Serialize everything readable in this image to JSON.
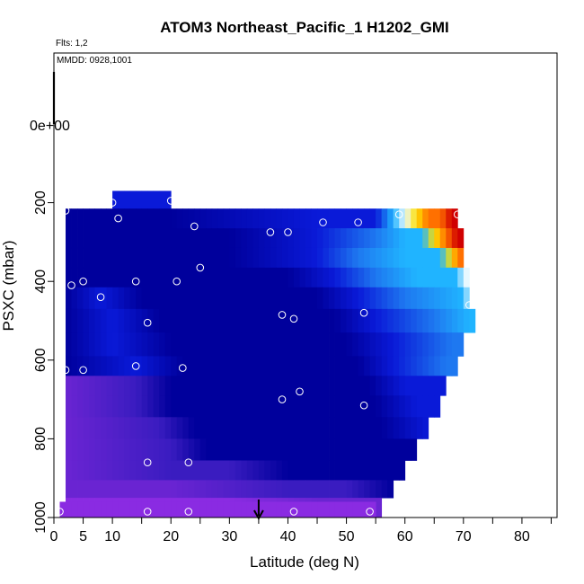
{
  "chart_data": {
    "type": "heatmap",
    "title": "ATOM3 Northeast_Pacific_1 H1202_GMI",
    "notes": [
      "Flts: 1,2",
      "MMDD: 0928,1001"
    ],
    "xlabel": "Latitude (deg N)",
    "ylabel": "PSXC (mbar)",
    "xlim": [
      0,
      86
    ],
    "ylim": [
      1000,
      0
    ],
    "x_ticks": [
      0,
      5,
      10,
      20,
      30,
      40,
      50,
      60,
      70,
      80
    ],
    "x_minor_ticks": [
      15,
      25,
      35,
      45,
      55,
      65,
      75,
      85
    ],
    "y_ticks": [
      200,
      400,
      600,
      800,
      1000
    ],
    "y_extra_label": "0e+00",
    "marker_x": 35,
    "grid": false,
    "colors": {
      "very_low": "#8a2be2",
      "low": "#6a24d2",
      "mid_low": "#3a1cc0",
      "background": "#00009c",
      "mid": "#0a1ad8",
      "mid_high": "#1e78f0",
      "high": "#20b4ff",
      "higher": "#e8f8ff",
      "peak1": "#ffe000",
      "peak2": "#ff7000",
      "peak3": "#d00000"
    },
    "rows": [
      {
        "p": [
          170,
          215
        ],
        "lon": [
          10,
          20
        ],
        "profile": [
          [
            10,
            "mid"
          ],
          [
            20,
            "mid"
          ]
        ]
      },
      {
        "p": [
          215,
          265
        ],
        "lon": [
          2,
          69
        ],
        "profile": [
          [
            2,
            "background"
          ],
          [
            20,
            "background"
          ],
          [
            45,
            "mid"
          ],
          [
            55,
            "mid"
          ],
          [
            58,
            "high"
          ],
          [
            60,
            "higher"
          ],
          [
            62,
            "peak1"
          ],
          [
            64,
            "peak2"
          ],
          [
            66,
            "peak2"
          ],
          [
            68,
            "peak3"
          ],
          [
            69,
            "peak3"
          ]
        ]
      },
      {
        "p": [
          265,
          315
        ],
        "lon": [
          2,
          70
        ],
        "profile": [
          [
            2,
            "background"
          ],
          [
            30,
            "background"
          ],
          [
            45,
            "mid"
          ],
          [
            55,
            "mid_high"
          ],
          [
            60,
            "high"
          ],
          [
            63,
            "high"
          ],
          [
            65,
            "peak1"
          ],
          [
            67,
            "peak2"
          ],
          [
            69,
            "peak3"
          ],
          [
            70,
            "peak3"
          ]
        ]
      },
      {
        "p": [
          315,
          365
        ],
        "lon": [
          2,
          70
        ],
        "profile": [
          [
            2,
            "background"
          ],
          [
            30,
            "background"
          ],
          [
            45,
            "mid"
          ],
          [
            52,
            "mid_high"
          ],
          [
            60,
            "high"
          ],
          [
            66,
            "high"
          ],
          [
            68,
            "peak1"
          ],
          [
            69,
            "peak2"
          ],
          [
            70,
            "peak2"
          ]
        ]
      },
      {
        "p": [
          365,
          415
        ],
        "lon": [
          2,
          71
        ],
        "profile": [
          [
            2,
            "background"
          ],
          [
            40,
            "background"
          ],
          [
            48,
            "mid"
          ],
          [
            55,
            "mid_high"
          ],
          [
            62,
            "high"
          ],
          [
            69,
            "high"
          ],
          [
            70,
            "higher"
          ],
          [
            71,
            "higher"
          ]
        ]
      },
      {
        "p": [
          415,
          470
        ],
        "lon": [
          2,
          71
        ],
        "profile": [
          [
            2,
            "background"
          ],
          [
            8,
            "mid"
          ],
          [
            15,
            "background"
          ],
          [
            45,
            "background"
          ],
          [
            52,
            "mid"
          ],
          [
            60,
            "mid_high"
          ],
          [
            70,
            "high"
          ],
          [
            71,
            "higher"
          ]
        ]
      },
      {
        "p": [
          470,
          530
        ],
        "lon": [
          2,
          72
        ],
        "profile": [
          [
            2,
            "background"
          ],
          [
            10,
            "mid"
          ],
          [
            18,
            "background"
          ],
          [
            48,
            "background"
          ],
          [
            55,
            "mid"
          ],
          [
            65,
            "mid_high"
          ],
          [
            71,
            "high"
          ],
          [
            72,
            "high"
          ]
        ]
      },
      {
        "p": [
          530,
          590
        ],
        "lon": [
          2,
          70
        ],
        "profile": [
          [
            2,
            "background"
          ],
          [
            10,
            "mid"
          ],
          [
            20,
            "background"
          ],
          [
            50,
            "background"
          ],
          [
            58,
            "mid"
          ],
          [
            68,
            "mid_high"
          ],
          [
            70,
            "mid_high"
          ]
        ]
      },
      {
        "p": [
          590,
          640
        ],
        "lon": [
          2,
          69
        ],
        "profile": [
          [
            2,
            "background"
          ],
          [
            14,
            "mid"
          ],
          [
            22,
            "background"
          ],
          [
            52,
            "background"
          ],
          [
            58,
            "mid"
          ],
          [
            67,
            "mid_high"
          ],
          [
            69,
            "mid_high"
          ]
        ]
      },
      {
        "p": [
          640,
          690
        ],
        "lon": [
          2,
          67
        ],
        "profile": [
          [
            2,
            "low"
          ],
          [
            14,
            "mid_low"
          ],
          [
            20,
            "background"
          ],
          [
            54,
            "background"
          ],
          [
            60,
            "mid"
          ],
          [
            67,
            "mid"
          ]
        ]
      },
      {
        "p": [
          690,
          745
        ],
        "lon": [
          2,
          66
        ],
        "profile": [
          [
            2,
            "low"
          ],
          [
            14,
            "mid_low"
          ],
          [
            20,
            "background"
          ],
          [
            55,
            "background"
          ],
          [
            62,
            "mid"
          ],
          [
            66,
            "mid"
          ]
        ]
      },
      {
        "p": [
          745,
          800
        ],
        "lon": [
          2,
          64
        ],
        "profile": [
          [
            2,
            "low"
          ],
          [
            18,
            "mid_low"
          ],
          [
            24,
            "background"
          ],
          [
            56,
            "background"
          ],
          [
            64,
            "mid"
          ]
        ]
      },
      {
        "p": [
          800,
          855
        ],
        "lon": [
          2,
          62
        ],
        "profile": [
          [
            2,
            "low"
          ],
          [
            20,
            "mid_low"
          ],
          [
            26,
            "background"
          ],
          [
            60,
            "background"
          ],
          [
            62,
            "background"
          ]
        ]
      },
      {
        "p": [
          855,
          905
        ],
        "lon": [
          2,
          60
        ],
        "profile": [
          [
            2,
            "low"
          ],
          [
            20,
            "mid_low"
          ],
          [
            30,
            "mid_low"
          ],
          [
            40,
            "background"
          ],
          [
            60,
            "background"
          ]
        ]
      },
      {
        "p": [
          905,
          950
        ],
        "lon": [
          2,
          58
        ],
        "profile": [
          [
            2,
            "low"
          ],
          [
            20,
            "low"
          ],
          [
            40,
            "mid_low"
          ],
          [
            50,
            "mid_low"
          ],
          [
            58,
            "background"
          ]
        ]
      },
      {
        "p": [
          950,
          1000
        ],
        "lon": [
          2,
          56
        ],
        "profile": [
          [
            2,
            "very_low"
          ],
          [
            30,
            "very_low"
          ],
          [
            45,
            "low"
          ],
          [
            56,
            "low"
          ]
        ]
      },
      {
        "p": [
          960,
          1000
        ],
        "lon": [
          1,
          55
        ],
        "profile": [
          [
            1,
            "very_low"
          ],
          [
            55,
            "very_low"
          ]
        ]
      }
    ],
    "points": [
      [
        1,
        985
      ],
      [
        16,
        985
      ],
      [
        23,
        985
      ],
      [
        41,
        985
      ],
      [
        54,
        985
      ],
      [
        16,
        860
      ],
      [
        23,
        860
      ],
      [
        2,
        625
      ],
      [
        5,
        625
      ],
      [
        14,
        615
      ],
      [
        22,
        620
      ],
      [
        42,
        680
      ],
      [
        39,
        700
      ],
      [
        53,
        715
      ],
      [
        3,
        410
      ],
      [
        5,
        400
      ],
      [
        8,
        440
      ],
      [
        14,
        400
      ],
      [
        21,
        400
      ],
      [
        16,
        505
      ],
      [
        39,
        485
      ],
      [
        41,
        495
      ],
      [
        53,
        480
      ],
      [
        71,
        460
      ],
      [
        2,
        220
      ],
      [
        10,
        200
      ],
      [
        20,
        195
      ],
      [
        11,
        240
      ],
      [
        24,
        260
      ],
      [
        25,
        365
      ],
      [
        37,
        275
      ],
      [
        40,
        275
      ],
      [
        46,
        250
      ],
      [
        52,
        250
      ],
      [
        59,
        230
      ],
      [
        69,
        230
      ]
    ]
  }
}
